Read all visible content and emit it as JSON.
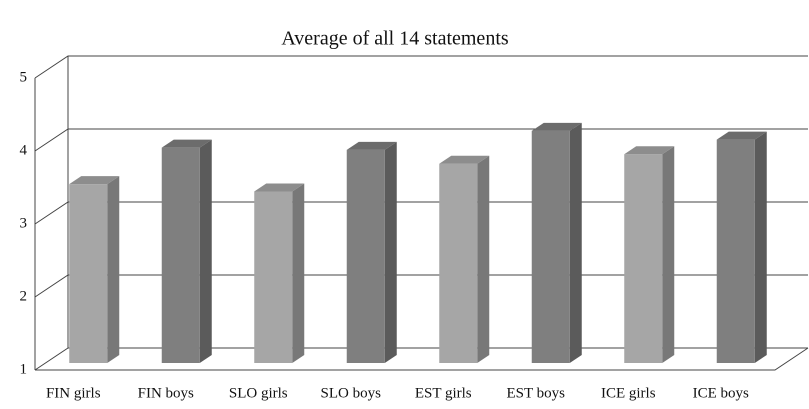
{
  "chart_data": {
    "type": "bar3d",
    "title": "Average of all 14 statements",
    "categories": [
      "FIN girls",
      "FIN boys",
      "SLO girls",
      "SLO boys",
      "EST girls",
      "EST boys",
      "ICE girls",
      "ICE boys"
    ],
    "values": [
      3.45,
      3.95,
      3.35,
      3.92,
      3.73,
      4.18,
      3.86,
      4.06
    ],
    "colors": [
      "#a6a6a6",
      "#7f7f7f",
      "#a6a6a6",
      "#7f7f7f",
      "#a6a6a6",
      "#7f7f7f",
      "#a6a6a6",
      "#7f7f7f"
    ],
    "ylim": [
      1,
      5
    ],
    "yticks": [
      1,
      2,
      3,
      4,
      5
    ],
    "grid": true
  }
}
